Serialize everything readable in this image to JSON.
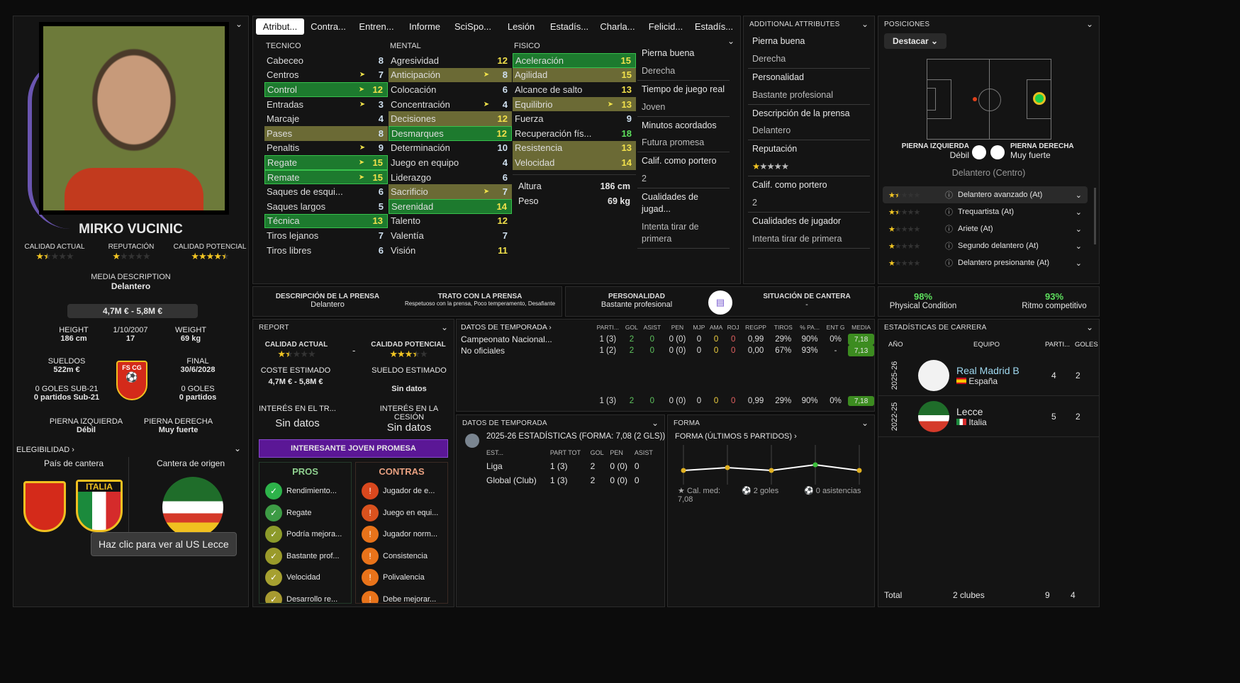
{
  "player": {
    "name": "MIRKO VUCINIC",
    "ca_label": "CALIDAD ACTUAL",
    "rep_label": "REPUTACIÓN",
    "pa_label": "CALIDAD POTENCIAL",
    "ca_stars": 1.5,
    "rep_stars": 1,
    "pa_stars": 4.5,
    "media_desc_label": "MEDIA DESCRIPTION",
    "media_desc": "Delantero",
    "value": "4,7M € - 5,8M €",
    "height_label": "HEIGHT",
    "height": "186 cm",
    "dob": "1/10/2007",
    "age": "17",
    "weight_label": "WEIGHT",
    "weight": "69 kg",
    "wage_label": "SUELDOS",
    "wage": "522m €",
    "contract_label": "FINAL",
    "contract": "30/6/2028",
    "u21_goals": "0 GOLES SUB-21",
    "u21_apps": "0 partidos Sub-21",
    "goals": "0 GOLES",
    "apps": "0 partidos",
    "lf_label": "PIERNA IZQUIERDA",
    "lf": "Débil",
    "rf_label": "PIERNA DERECHA",
    "rf": "Muy fuerte",
    "elig": "ELEGIBILIDAD",
    "home_label": "País de cantera",
    "origin_label": "Cantera de origen",
    "crest_italy": "ITALIA",
    "federation_badge": "FS CG",
    "tooltip": "Haz clic para ver al US Lecce"
  },
  "tabs": [
    "Atribut...",
    "Contra...",
    "Entren...",
    "Informe",
    "SciSpo...",
    "Lesión",
    "Estadís...",
    "Charla...",
    "Felicid...",
    "Estadís..."
  ],
  "attrs": {
    "tecnico": {
      "title": "TECNICO",
      "rows": [
        [
          "Cabeceo",
          8,
          "",
          ""
        ],
        [
          "Centros",
          7,
          "",
          1
        ],
        [
          "Control",
          12,
          "key",
          1
        ],
        [
          "Entradas",
          3,
          "",
          1
        ],
        [
          "Marcaje",
          4,
          "",
          ""
        ],
        [
          "Pases",
          8,
          "sec",
          ""
        ],
        [
          "Penaltis",
          9,
          "",
          1
        ],
        [
          "Regate",
          15,
          "key",
          1
        ],
        [
          "Remate",
          15,
          "key",
          1
        ],
        [
          "Saques de esqui...",
          6,
          "",
          ""
        ],
        [
          "Saques largos",
          5,
          "",
          ""
        ],
        [
          "Técnica",
          13,
          "key",
          ""
        ],
        [
          "Tiros lejanos",
          7,
          "",
          ""
        ],
        [
          "Tiros libres",
          6,
          "",
          ""
        ]
      ]
    },
    "mental": {
      "title": "MENTAL",
      "rows": [
        [
          "Agresividad",
          12,
          "",
          ""
        ],
        [
          "Anticipación",
          8,
          "sec",
          1
        ],
        [
          "Colocación",
          6,
          "",
          ""
        ],
        [
          "Concentración",
          4,
          "",
          1
        ],
        [
          "Decisiones",
          12,
          "sec",
          ""
        ],
        [
          "Desmarques",
          12,
          "key",
          ""
        ],
        [
          "Determinación",
          10,
          "",
          ""
        ],
        [
          "Juego en equipo",
          4,
          "",
          ""
        ],
        [
          "Liderazgo",
          6,
          "",
          ""
        ],
        [
          "Sacrificio",
          7,
          "sec",
          1
        ],
        [
          "Serenidad",
          14,
          "key",
          ""
        ],
        [
          "Talento",
          12,
          "",
          ""
        ],
        [
          "Valentía",
          7,
          "",
          ""
        ],
        [
          "Visión",
          11,
          "",
          ""
        ]
      ]
    },
    "fisico": {
      "title": "FISICO",
      "rows": [
        [
          "Aceleración",
          15,
          "key",
          ""
        ],
        [
          "Agilidad",
          15,
          "sec",
          ""
        ],
        [
          "Alcance de salto",
          13,
          "",
          ""
        ],
        [
          "Equilibrio",
          13,
          "sec",
          1
        ],
        [
          "Fuerza",
          9,
          "",
          ""
        ],
        [
          "Recuperación fís...",
          18,
          "",
          ""
        ],
        [
          "Resistencia",
          13,
          "sec",
          ""
        ],
        [
          "Velocidad",
          14,
          "sec",
          ""
        ]
      ]
    },
    "altura_label": "Altura",
    "altura": "186 cm",
    "peso_label": "Peso",
    "peso": "69 kg"
  },
  "side_info": [
    "Pierna buena",
    "Derecha",
    "Tiempo de juego real",
    "Joven",
    "Minutos acordados",
    "Futura promesa",
    "Calif. como portero",
    "2",
    "Cualidades de jugad...",
    "Intenta tirar de primera"
  ],
  "additional": {
    "title": "ADDITIONAL ATTRIBUTES",
    "items": [
      "Pierna buena",
      "Derecha",
      "Personalidad",
      "Bastante profesional",
      "Descripción de la prensa",
      "Delantero",
      "Reputación",
      "",
      "Calif. como portero",
      "2",
      "Cualidades de jugador",
      "Intenta tirar de primera"
    ],
    "rep_stars": 1
  },
  "positions": {
    "title": "POSICIONES",
    "dropdown": "Destacar",
    "lf_label": "PIERNA IZQUIERDA",
    "lf": "Débil",
    "rf_label": "PIERNA DERECHA",
    "rf": "Muy fuerte",
    "main": "Delantero (Centro)",
    "roles": [
      [
        "Delantero avanzado (At)",
        1.5
      ],
      [
        "Trequartista (At)",
        1.5
      ],
      [
        "Ariete (At)",
        1
      ],
      [
        "Segundo delantero (At)",
        1
      ],
      [
        "Delantero presionante (At)",
        1
      ]
    ]
  },
  "press": {
    "desc_label": "DESCRIPCIÓN DE LA PRENSA",
    "desc": "Delantero",
    "trato_label": "TRATO CON LA PRENSA",
    "trato": "Respetuoso con la prensa, Poco temperamento, Desafiante",
    "pers_label": "PERSONALIDAD",
    "pers": "Bastante profesional",
    "cantera_label": "SITUACIÓN DE CANTERA",
    "cantera": "-"
  },
  "condition": {
    "phys": "98%",
    "phys_label": "Physical Condition",
    "ritmo": "93%",
    "ritmo_label": "Ritmo competitivo"
  },
  "report": {
    "title": "REPORT",
    "ca_label": "CALIDAD ACTUAL",
    "pa_label": "CALIDAD POTENCIAL",
    "ca_stars": 1.5,
    "pa_stars": 3.5,
    "dash": "-",
    "cost_label": "COSTE ESTIMADO",
    "cost": "4,7M € - 5,8M €",
    "wage_label": "SUELDO ESTIMADO",
    "wage": "Sin datos",
    "int_tr_label": "INTERÉS EN EL TR...",
    "int_tr": "Sin datos",
    "int_ces_label": "INTERÉS EN LA CESIÓN",
    "int_ces": "Sin datos",
    "banner": "INTERESANTE JOVEN PROMESA",
    "pros_label": "PROS",
    "cons_label": "CONTRAS",
    "pros": [
      [
        "Rendimiento...",
        "#2db34a"
      ],
      [
        "Regate",
        "#3d9b45"
      ],
      [
        "Podría mejora...",
        "#8c9a2a"
      ],
      [
        "Bastante prof...",
        "#9a9a2a"
      ],
      [
        "Velocidad",
        "#a6a030"
      ],
      [
        "Desarrollo re...",
        "#a89a30"
      ]
    ],
    "cons": [
      [
        "Jugador de e...",
        "#d9481e"
      ],
      [
        "Juego en equi...",
        "#d9521e"
      ],
      [
        "Jugador norm...",
        "#e8731a"
      ],
      [
        "Consistencia",
        "#e8731a"
      ],
      [
        "Polivalencia",
        "#e8731a"
      ],
      [
        "Debe mejorar...",
        "#e8731a"
      ]
    ]
  },
  "season": {
    "title": "DATOS DE TEMPORADA",
    "cols": [
      "PARTI...",
      "GOL",
      "ASIST",
      "PEN",
      "MJP",
      "AMA",
      "ROJ",
      "REGPP",
      "TIROS",
      "% PA...",
      "ENT G",
      "MEDIA"
    ],
    "rows": [
      [
        "Campeonato Nacional...",
        "1 (3)",
        "2",
        "0",
        "0 (0)",
        "0",
        "0",
        "0",
        "0,99",
        "29%",
        "90%",
        "0%",
        "7,18"
      ],
      [
        "No oficiales",
        "1 (2)",
        "2",
        "0",
        "0 (0)",
        "0",
        "0",
        "0",
        "0,00",
        "67%",
        "93%",
        "-",
        "7,13"
      ]
    ],
    "total": [
      "",
      "1 (3)",
      "2",
      "0",
      "0 (0)",
      "0",
      "0",
      "0",
      "0,99",
      "29%",
      "90%",
      "0%",
      "7,18"
    ]
  },
  "season2": {
    "title": "DATOS DE TEMPORADA",
    "subtitle": "2025-26 ESTADÍSTICAS (FORMA: 7,08 (2 GLS))",
    "cols": [
      "EST...",
      "PART TOT",
      "GOL",
      "PEN",
      "ASIST"
    ],
    "rows": [
      [
        "Liga",
        "1 (3)",
        "2",
        "0 (0)",
        "0"
      ],
      [
        "Global (Club)",
        "1 (3)",
        "2",
        "0 (0)",
        "0"
      ]
    ]
  },
  "form": {
    "title": "FORMA",
    "subtitle": "FORMA (ÚLTIMOS 5 PARTIDOS)",
    "ratings": [
      7.0,
      7.1,
      7.0,
      7.2,
      7.0
    ],
    "avg_label": "Cal. med:",
    "avg": "7,08",
    "goals": "2 goles",
    "assists": "0 asistencias"
  },
  "career": {
    "title": "ESTADÍSTICAS DE CARRERA",
    "cols": [
      "AÑO",
      "EQUIPO",
      "PARTI...",
      "GOLES"
    ],
    "rows": [
      [
        "2025-26",
        "Real Madrid B",
        "España",
        "4",
        "2"
      ],
      [
        "2022-25",
        "Lecce",
        "Italia",
        "5",
        "2"
      ]
    ],
    "total_label": "Total",
    "total_clubs": "2 clubes",
    "total_apps": "9",
    "total_goals": "4"
  },
  "colors": {
    "key": "#1d7a2e",
    "secondary": "#6b6a35",
    "banner": "#5b1796",
    "star": "#f3c623"
  }
}
